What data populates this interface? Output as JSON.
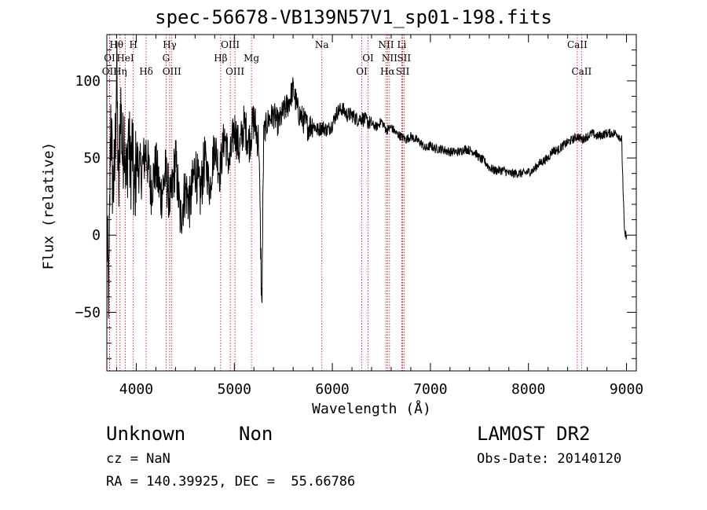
{
  "chart_data": {
    "type": "line",
    "title": "spec-56678-VB139N57V1_sp01-198.fits",
    "xlabel": "Wavelength (Å)",
    "ylabel": "Flux (relative)",
    "xlim": [
      3700,
      9100
    ],
    "ylim": [
      -88,
      130
    ],
    "x_ticks": [
      4000,
      5000,
      6000,
      7000,
      8000,
      9000
    ],
    "x_tick_labels": [
      "4000",
      "5000",
      "6000",
      "7000",
      "8000",
      "9000"
    ],
    "y_ticks": [
      -50,
      0,
      50,
      100
    ],
    "y_tick_labels": [
      "−50",
      "0",
      "50",
      "100"
    ],
    "grid": false,
    "legend": "none",
    "series": [
      {
        "x": [
          3700,
          3720,
          3740,
          3760,
          3780,
          3800,
          3820,
          3840,
          3860,
          3880,
          3900,
          3920,
          3940,
          3960,
          3980,
          4000,
          4050,
          4100,
          4150,
          4200,
          4250,
          4300,
          4350,
          4400,
          4450,
          4500,
          4550,
          4600,
          4650,
          4700,
          4750,
          4800,
          4850,
          4900,
          4950,
          5000,
          5050,
          5100,
          5150,
          5200,
          5250,
          5280,
          5300,
          5320,
          5350,
          5400,
          5450,
          5500,
          5550,
          5600,
          5650,
          5700,
          5750,
          5800,
          5850,
          5900,
          5950,
          6000,
          6050,
          6100,
          6150,
          6200,
          6250,
          6300,
          6350,
          6400,
          6450,
          6500,
          6550,
          6600,
          6650,
          6700,
          6750,
          6800,
          6850,
          6900,
          6950,
          7000,
          7050,
          7100,
          7150,
          7200,
          7250,
          7300,
          7350,
          7400,
          7450,
          7500,
          7550,
          7600,
          7650,
          7700,
          7750,
          7800,
          7850,
          7900,
          7950,
          8000,
          8050,
          8100,
          8150,
          8200,
          8250,
          8300,
          8350,
          8400,
          8450,
          8500,
          8550,
          8600,
          8650,
          8700,
          8750,
          8800,
          8850,
          8900,
          8950,
          8980,
          9000
        ],
        "y": [
          0,
          -40,
          80,
          30,
          40,
          110,
          20,
          90,
          50,
          70,
          30,
          70,
          40,
          60,
          20,
          50,
          40,
          55,
          30,
          45,
          25,
          40,
          20,
          50,
          10,
          30,
          20,
          45,
          25,
          50,
          30,
          60,
          40,
          65,
          45,
          70,
          55,
          72,
          60,
          75,
          60,
          -50,
          65,
          70,
          75,
          78,
          72,
          80,
          85,
          95,
          80,
          75,
          70,
          72,
          68,
          70,
          68,
          72,
          80,
          82,
          78,
          78,
          75,
          76,
          74,
          72,
          70,
          74,
          68,
          70,
          66,
          64,
          62,
          64,
          62,
          60,
          56,
          58,
          56,
          56,
          55,
          54,
          54,
          54,
          56,
          55,
          54,
          50,
          48,
          44,
          42,
          42,
          42,
          40,
          40,
          40,
          40,
          41,
          42,
          46,
          48,
          50,
          55,
          55,
          58,
          60,
          62,
          64,
          62,
          64,
          66,
          64,
          65,
          66,
          66,
          66,
          62,
          0,
          0
        ]
      }
    ],
    "line_markers": [
      {
        "label": "Hθ",
        "x": 3798,
        "row": 1
      },
      {
        "label": "H",
        "x": 3970,
        "row": 1
      },
      {
        "label": "Hγ",
        "x": 4341,
        "row": 1
      },
      {
        "label": "OIII",
        "x": 4959,
        "row": 1
      },
      {
        "label": "Na",
        "x": 5893,
        "row": 1
      },
      {
        "label": "NII",
        "x": 6548,
        "row": 1
      },
      {
        "label": "Li",
        "x": 6708,
        "row": 1
      },
      {
        "label": "CaII",
        "x": 8498,
        "row": 1
      },
      {
        "label": "OI",
        "x": 3728,
        "row": 2
      },
      {
        "label": "HeI",
        "x": 3889,
        "row": 2
      },
      {
        "label": "G",
        "x": 4304,
        "row": 2
      },
      {
        "label": "Hβ",
        "x": 4861,
        "row": 2
      },
      {
        "label": "Mg",
        "x": 5175,
        "row": 2
      },
      {
        "label": "OI",
        "x": 6364,
        "row": 2
      },
      {
        "label": "NII",
        "x": 6583,
        "row": 2
      },
      {
        "label": "SII",
        "x": 6731,
        "row": 2
      },
      {
        "label": "OII",
        "x": 3727,
        "row": 3
      },
      {
        "label": "Hη",
        "x": 3835,
        "row": 3
      },
      {
        "label": "Hδ",
        "x": 4101,
        "row": 3
      },
      {
        "label": "OIII",
        "x": 4363,
        "row": 3
      },
      {
        "label": "OIII",
        "x": 5007,
        "row": 3
      },
      {
        "label": "OI",
        "x": 6300,
        "row": 3
      },
      {
        "label": "Hα",
        "x": 6563,
        "row": 3
      },
      {
        "label": "SII",
        "x": 6717,
        "row": 3
      },
      {
        "label": "CaII",
        "x": 8542,
        "row": 3
      }
    ],
    "marker_color": "#cc0000"
  },
  "info": {
    "object_class": "Unknown",
    "object_subclass": "Non",
    "survey": "LAMOST DR2",
    "cz": "cz = NaN",
    "obs_date": "Obs-Date: 20140120",
    "radec": "RA = 140.39925, DEC =  55.66786"
  }
}
